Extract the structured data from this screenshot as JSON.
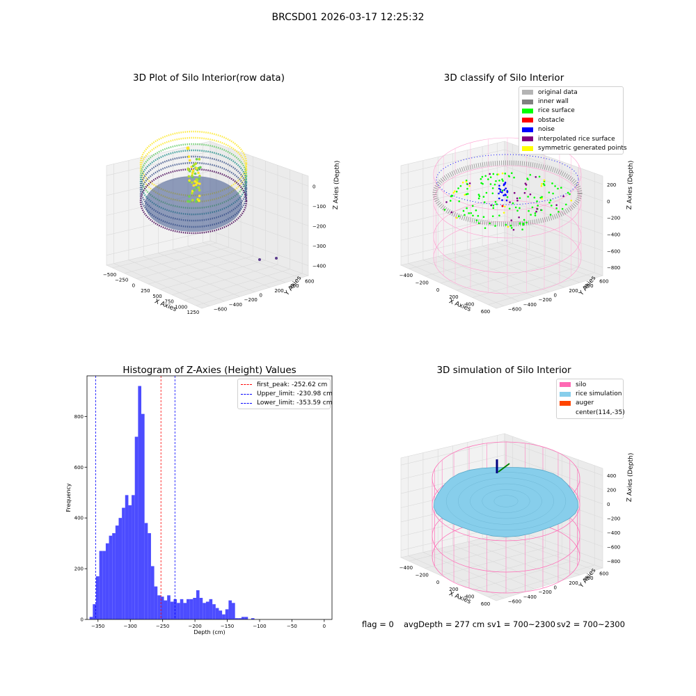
{
  "figure": {
    "suptitle": "BRCSD01 2026-03-17 12:25:32",
    "status": {
      "flag": "flag = 0",
      "avg_depth": "avgDepth = 277 cm",
      "sv1": "sv1 = 700~2300",
      "sv2": "sv2 = 700~2300"
    }
  },
  "colors": {
    "original_data": "#b4b4b4",
    "inner_wall": "#808080",
    "rice_surface": "#00ff00",
    "obstacle": "#ff0000",
    "noise": "#0000ff",
    "interpolated_rice_surface": "#800080",
    "symmetric_generated_points": "#ffff00",
    "silo": "#ff69b4",
    "rice_simulation": "#87ceeb",
    "auger": "#ff4500",
    "histogram_bar": "#4c4cff",
    "first_peak_line": "#ff0000",
    "limit_line": "#0000ff"
  },
  "chart_data": [
    {
      "type": "scatter",
      "title": "3D Plot of Silo Interior(row data)",
      "xlabel": "X Axies",
      "ylabel": "Y Axies",
      "zlabel": "Z Axies (Depth)",
      "x_ticks": [
        "−500",
        "−250",
        "0",
        "250",
        "500",
        "750",
        "1000",
        "1250"
      ],
      "y_ticks": [
        "−600",
        "−400",
        "−200",
        "0",
        "200",
        "400",
        "600"
      ],
      "z_ticks": [
        "−400",
        "−300",
        "−200",
        "−100",
        "0"
      ],
      "colormap": "viridis"
    },
    {
      "type": "scatter",
      "title": "3D classify of Silo Interior",
      "xlabel": "X Axies",
      "ylabel": "Y Axies",
      "zlabel": "Z Axies (Depth)",
      "x_ticks": [
        "−400",
        "−200",
        "0",
        "200",
        "400",
        "600"
      ],
      "y_ticks": [
        "−600",
        "−400",
        "−200",
        "0",
        "200",
        "400",
        "600"
      ],
      "z_ticks": [
        "−800",
        "−600",
        "−400",
        "−200",
        "0",
        "200"
      ],
      "legend": {
        "placement": "top-right",
        "entries": [
          {
            "label": "original data",
            "color": "#b4b4b4"
          },
          {
            "label": "inner wall",
            "color": "#808080"
          },
          {
            "label": "rice surface",
            "color": "#00ff00"
          },
          {
            "label": "obstacle",
            "color": "#ff0000"
          },
          {
            "label": "noise",
            "color": "#0000ff"
          },
          {
            "label": "interpolated rice surface",
            "color": "#800080"
          },
          {
            "label": "symmetric generated points",
            "color": "#ffff00"
          }
        ]
      }
    },
    {
      "type": "bar",
      "title": "Histogram of Z-Axies (Height) Values",
      "xlabel": "Depth (cm)",
      "ylabel": "Frequency",
      "xlim": [
        -367,
        12
      ],
      "ylim": [
        0,
        960
      ],
      "bin_width": 5,
      "bin_start": -363,
      "values": [
        10,
        60,
        170,
        270,
        270,
        300,
        330,
        340,
        370,
        400,
        440,
        490,
        450,
        490,
        720,
        920,
        810,
        380,
        340,
        210,
        130,
        95,
        90,
        75,
        95,
        70,
        80,
        65,
        80,
        65,
        80,
        80,
        85,
        115,
        85,
        65,
        70,
        80,
        60,
        45,
        35,
        20,
        40,
        75,
        65,
        5,
        5,
        10,
        10,
        0,
        5
      ],
      "x_ticks": [
        -350,
        -300,
        -250,
        -200,
        -150,
        -100,
        -50,
        0
      ],
      "y_ticks": [
        0,
        200,
        400,
        600,
        800
      ],
      "vlines": [
        {
          "label": "first_peak: -252.62 cm",
          "x": -252.62,
          "color": "#ff0000"
        },
        {
          "label": "Upper_limit: -230.98 cm",
          "x": -230.98,
          "color": "#0000ff"
        },
        {
          "label": "Lower_limit: -353.59 cm",
          "x": -353.59,
          "color": "#0000ff"
        }
      ],
      "legend_placement": "top-right"
    },
    {
      "type": "scatter",
      "title": "3D simulation of Silo Interior",
      "xlabel": "X Axies",
      "ylabel": "Y Axies",
      "zlabel": "Z Axies (Depth)",
      "x_ticks": [
        "−400",
        "−200",
        "0",
        "200",
        "400",
        "600"
      ],
      "y_ticks": [
        "−600",
        "−400",
        "−200",
        "0",
        "200",
        "400",
        "600"
      ],
      "z_ticks": [
        "−800",
        "−600",
        "−400",
        "−200",
        "0",
        "200",
        "400"
      ],
      "legend": {
        "placement": "top-right",
        "entries": [
          {
            "label": "silo",
            "color": "#ff69b4"
          },
          {
            "label": "rice simulation",
            "color": "#87ceeb"
          },
          {
            "label": "auger",
            "color": "#ff4500"
          },
          {
            "label": "center(114,-35)",
            "color": ""
          }
        ]
      }
    }
  ]
}
